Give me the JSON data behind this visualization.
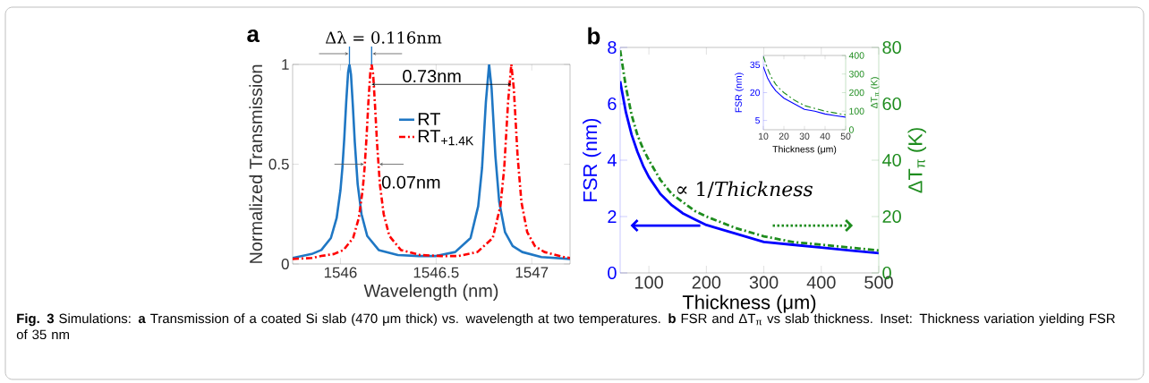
{
  "chart_data": [
    {
      "type": "line",
      "title": "a",
      "xlabel": "Wavelength (nm)",
      "ylabel": "Normalized Transmission",
      "xlim": [
        1545.75,
        1547.2
      ],
      "ylim": [
        0,
        1
      ],
      "xticks": [
        1546,
        1546.5,
        1547
      ],
      "yticks": [
        0,
        0.5,
        1
      ],
      "legend": "center",
      "annotations": [
        "Δλ = 0.116nm",
        "0.73nm",
        "0.07nm"
      ],
      "series": [
        {
          "name": "RT",
          "color": "#1f77c4",
          "line_style": "solid",
          "x": [
            1545.75,
            1545.85,
            1545.9,
            1545.95,
            1545.98,
            1546.0,
            1546.01,
            1546.02,
            1546.03,
            1546.04,
            1546.047,
            1546.055,
            1546.065,
            1546.075,
            1546.09,
            1546.11,
            1546.14,
            1546.2,
            1546.3,
            1546.41,
            1546.5,
            1546.6,
            1546.68,
            1546.72,
            1546.74,
            1546.76,
            1546.777,
            1546.79,
            1546.81,
            1546.83,
            1546.86,
            1546.9,
            1546.95,
            1547.05,
            1547.2
          ],
          "values": [
            0.03,
            0.05,
            0.07,
            0.13,
            0.23,
            0.37,
            0.48,
            0.63,
            0.81,
            0.96,
            1,
            0.95,
            0.79,
            0.61,
            0.4,
            0.25,
            0.14,
            0.07,
            0.045,
            0.04,
            0.04,
            0.06,
            0.13,
            0.29,
            0.48,
            0.81,
            1,
            0.88,
            0.54,
            0.31,
            0.16,
            0.09,
            0.06,
            0.035,
            0.025
          ]
        },
        {
          "name": "RT$_{+1.4K}$",
          "color": "#ff0000",
          "line_style": "dashed",
          "x": [
            1545.75,
            1545.85,
            1545.9,
            1545.966,
            1546.016,
            1546.066,
            1546.096,
            1546.116,
            1546.126,
            1546.136,
            1546.146,
            1546.156,
            1546.163,
            1546.171,
            1546.181,
            1546.191,
            1546.206,
            1546.226,
            1546.256,
            1546.316,
            1546.416,
            1546.526,
            1546.616,
            1546.716,
            1546.796,
            1546.836,
            1546.856,
            1546.876,
            1546.893,
            1546.906,
            1546.926,
            1546.946,
            1546.976,
            1547.016,
            1547.066,
            1547.166,
            1547.2
          ],
          "values": [
            0.025,
            0.03,
            0.04,
            0.05,
            0.07,
            0.13,
            0.23,
            0.37,
            0.48,
            0.63,
            0.81,
            0.96,
            1,
            0.95,
            0.79,
            0.61,
            0.4,
            0.25,
            0.14,
            0.07,
            0.045,
            0.04,
            0.04,
            0.06,
            0.13,
            0.29,
            0.48,
            0.81,
            1,
            0.88,
            0.54,
            0.31,
            0.16,
            0.09,
            0.06,
            0.035,
            0.03
          ]
        }
      ]
    },
    {
      "type": "line",
      "title": "b",
      "xlabel": "Thickness (μm)",
      "ylabel": "FSR (nm)",
      "y2label": "ΔT$_{π}$ (K)",
      "xlim": [
        50,
        500
      ],
      "xticks": [
        100,
        200,
        300,
        400,
        500
      ],
      "ylim": [
        0,
        8
      ],
      "yticks": [
        0,
        2,
        4,
        6,
        8
      ],
      "y2lim": [
        0,
        80
      ],
      "y2ticks": [
        0,
        20,
        40,
        60,
        80
      ],
      "annotations": [
        "∝ 1/*Thickness*",
        "**Fig. 3** Simulations: **a** Transmission of a coated Si slab (470 μm thick) vs. wavelength at two temperatures. **b** FSR and ΔT$_{π}$ vs slab thickness. Inset: Thickness variation yielding FSR of 35 nm"
      ],
      "x": [
        50,
        60,
        70,
        80,
        90,
        100,
        120,
        140,
        160,
        180,
        200,
        250,
        300,
        350,
        400,
        450,
        500
      ],
      "series": [
        {
          "color": "#0000ff",
          "line_style": "solid",
          "values": [
            6.8,
            5.7,
            4.9,
            4.3,
            3.8,
            3.4,
            2.8,
            2.4,
            2.1,
            1.9,
            1.7,
            1.4,
            1.1,
            1.0,
            0.9,
            0.8,
            0.7
          ]
        },
        {
          "color": "#1e8c1e",
          "line_style": "dashed",
          "axis": "y2",
          "values": [
            79,
            66,
            56,
            49,
            44,
            40,
            33,
            28,
            25,
            22,
            20,
            16,
            13,
            11,
            10,
            9,
            8
          ]
        }
      ]
    },
    {
      "type": "line",
      "xlabel": "Thickness (μm)",
      "ylabel": "FSR (nm)",
      "y2label": "ΔT$_{π}$ (K)",
      "xlim": [
        10,
        50
      ],
      "xticks": [
        10,
        20,
        30,
        40,
        50
      ],
      "ylim": [
        0,
        40
      ],
      "yticks": [
        5,
        20,
        35
      ],
      "y2lim": [
        0,
        400
      ],
      "y2ticks": [
        0,
        100,
        200,
        300,
        400
      ],
      "x": [
        10,
        12,
        14,
        16,
        18,
        20,
        25,
        30,
        35,
        40,
        45,
        50
      ],
      "series": [
        {
          "color": "#0000ff",
          "line_style": "solid",
          "values": [
            34,
            28,
            24,
            21,
            19,
            17,
            14,
            11,
            10,
            8.5,
            7.6,
            6.8
          ]
        },
        {
          "color": "#1e8c1e",
          "line_style": "dashed",
          "axis": "y2",
          "values": [
            395,
            330,
            280,
            245,
            220,
            200,
            160,
            130,
            115,
            100,
            90,
            80
          ]
        }
      ]
    }
  ]
}
